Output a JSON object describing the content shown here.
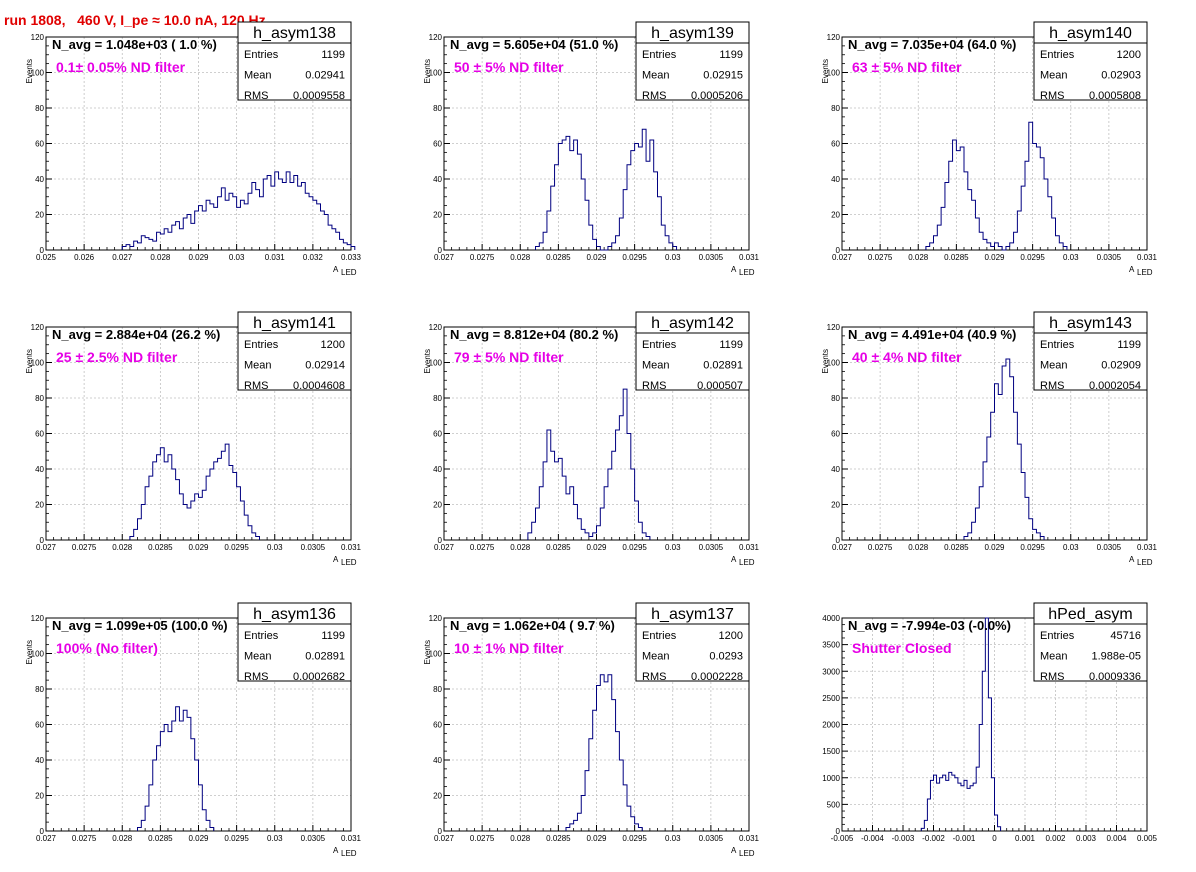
{
  "run_title": "run 1808,   460 V, I_pe ≈ 10.0 nA, 120 Hz",
  "colors": {
    "title": "#e00000",
    "filter_label": "#e600e6",
    "histogram_line": "#000080",
    "grid": "#c0c0c0"
  },
  "chart_data": [
    {
      "type": "histogram",
      "name": "h_asym138",
      "navg": "N_avg = 1.048e+03 ( 1.0 %)",
      "filter": "0.1± 0.05% ND filter",
      "stats": {
        "entries": "1199",
        "mean": "0.02941",
        "rms": "0.0009558"
      },
      "xlabel_main": "A",
      "xlabel_sub": "LED",
      "ylabel": "Events",
      "xlim": [
        0.025,
        0.033
      ],
      "ylim": [
        0,
        120
      ],
      "xticks": [
        {
          "v": 0.025,
          "t": "0.025"
        },
        {
          "v": 0.026,
          "t": "0.026"
        },
        {
          "v": 0.027,
          "t": "0.027"
        },
        {
          "v": 0.028,
          "t": "0.028"
        },
        {
          "v": 0.029,
          "t": "0.029"
        },
        {
          "v": 0.03,
          "t": "0.03"
        },
        {
          "v": 0.031,
          "t": "0.031"
        },
        {
          "v": 0.032,
          "t": "0.032"
        },
        {
          "v": 0.033,
          "t": "0.033"
        }
      ],
      "yticks": [
        {
          "v": 0,
          "t": "0"
        },
        {
          "v": 20,
          "t": "20"
        },
        {
          "v": 40,
          "t": "40"
        },
        {
          "v": 60,
          "t": "60"
        },
        {
          "v": 80,
          "t": "80"
        },
        {
          "v": 100,
          "t": "100"
        },
        {
          "v": 120,
          "t": "120"
        }
      ],
      "bin_start": 0.027,
      "bin_width": 0.0001,
      "counts": [
        2,
        3,
        2,
        5,
        4,
        8,
        7,
        6,
        5,
        10,
        9,
        12,
        10,
        14,
        16,
        12,
        18,
        20,
        15,
        22,
        25,
        22,
        28,
        26,
        24,
        30,
        35,
        28,
        32,
        30,
        24,
        28,
        26,
        32,
        38,
        34,
        30,
        40,
        42,
        36,
        44,
        40,
        38,
        44,
        38,
        42,
        36,
        38,
        32,
        30,
        28,
        26,
        22,
        20,
        14,
        12,
        10,
        6,
        4,
        3,
        2
      ]
    },
    {
      "type": "histogram",
      "name": "h_asym139",
      "navg": "N_avg = 5.605e+04 (51.0 %)",
      "filter": "50 ± 5% ND filter",
      "stats": {
        "entries": "1199",
        "mean": "0.02915",
        "rms": "0.0005206"
      },
      "xlabel_main": "A",
      "xlabel_sub": "LED",
      "ylabel": "Events",
      "xlim": [
        0.027,
        0.031
      ],
      "ylim": [
        0,
        120
      ],
      "xticks": [
        {
          "v": 0.027,
          "t": "0.027"
        },
        {
          "v": 0.0275,
          "t": "0.0275"
        },
        {
          "v": 0.028,
          "t": "0.028"
        },
        {
          "v": 0.0285,
          "t": "0.0285"
        },
        {
          "v": 0.029,
          "t": "0.029"
        },
        {
          "v": 0.0295,
          "t": "0.0295"
        },
        {
          "v": 0.03,
          "t": "0.03"
        },
        {
          "v": 0.0305,
          "t": "0.0305"
        },
        {
          "v": 0.031,
          "t": "0.031"
        }
      ],
      "yticks": [
        {
          "v": 0,
          "t": "0"
        },
        {
          "v": 20,
          "t": "20"
        },
        {
          "v": 40,
          "t": "40"
        },
        {
          "v": 60,
          "t": "60"
        },
        {
          "v": 80,
          "t": "80"
        },
        {
          "v": 100,
          "t": "100"
        },
        {
          "v": 120,
          "t": "120"
        }
      ],
      "bin_start": 0.0282,
      "bin_width": 5e-05,
      "counts": [
        2,
        4,
        10,
        22,
        36,
        48,
        60,
        62,
        64,
        56,
        62,
        54,
        40,
        28,
        14,
        6,
        2,
        0,
        0,
        2,
        4,
        8,
        18,
        34,
        48,
        56,
        60,
        58,
        68,
        50,
        62,
        44,
        30,
        14,
        8,
        4,
        2
      ]
    },
    {
      "type": "histogram",
      "name": "h_asym140",
      "navg": "N_avg = 7.035e+04 (64.0 %)",
      "filter": "63 ± 5% ND filter",
      "stats": {
        "entries": "1200",
        "mean": "0.02903",
        "rms": "0.0005808"
      },
      "xlabel_main": "A",
      "xlabel_sub": "LED",
      "ylabel": "Events",
      "xlim": [
        0.027,
        0.031
      ],
      "ylim": [
        0,
        120
      ],
      "xticks": [
        {
          "v": 0.027,
          "t": "0.027"
        },
        {
          "v": 0.0275,
          "t": "0.0275"
        },
        {
          "v": 0.028,
          "t": "0.028"
        },
        {
          "v": 0.0285,
          "t": "0.0285"
        },
        {
          "v": 0.029,
          "t": "0.029"
        },
        {
          "v": 0.0295,
          "t": "0.0295"
        },
        {
          "v": 0.03,
          "t": "0.03"
        },
        {
          "v": 0.0305,
          "t": "0.0305"
        },
        {
          "v": 0.031,
          "t": "0.031"
        }
      ],
      "yticks": [
        {
          "v": 0,
          "t": "0"
        },
        {
          "v": 20,
          "t": "20"
        },
        {
          "v": 40,
          "t": "40"
        },
        {
          "v": 60,
          "t": "60"
        },
        {
          "v": 80,
          "t": "80"
        },
        {
          "v": 100,
          "t": "100"
        },
        {
          "v": 120,
          "t": "120"
        }
      ],
      "bin_start": 0.0281,
      "bin_width": 5e-05,
      "counts": [
        2,
        4,
        8,
        14,
        24,
        38,
        50,
        62,
        56,
        58,
        44,
        34,
        28,
        18,
        10,
        6,
        4,
        2,
        4,
        2,
        0,
        2,
        4,
        10,
        22,
        36,
        50,
        72,
        60,
        58,
        52,
        40,
        30,
        18,
        8,
        4,
        2
      ]
    },
    {
      "type": "histogram",
      "name": "h_asym141",
      "navg": "N_avg = 2.884e+04 (26.2 %)",
      "filter": "25 ± 2.5% ND filter",
      "stats": {
        "entries": "1200",
        "mean": "0.02914",
        "rms": "0.0004608"
      },
      "xlabel_main": "A",
      "xlabel_sub": "LED",
      "ylabel": "Events",
      "xlim": [
        0.027,
        0.031
      ],
      "ylim": [
        0,
        120
      ],
      "xticks": [
        {
          "v": 0.027,
          "t": "0.027"
        },
        {
          "v": 0.0275,
          "t": "0.0275"
        },
        {
          "v": 0.028,
          "t": "0.028"
        },
        {
          "v": 0.0285,
          "t": "0.0285"
        },
        {
          "v": 0.029,
          "t": "0.029"
        },
        {
          "v": 0.0295,
          "t": "0.0295"
        },
        {
          "v": 0.03,
          "t": "0.03"
        },
        {
          "v": 0.0305,
          "t": "0.0305"
        },
        {
          "v": 0.031,
          "t": "0.031"
        }
      ],
      "yticks": [
        {
          "v": 0,
          "t": "0"
        },
        {
          "v": 20,
          "t": "20"
        },
        {
          "v": 40,
          "t": "40"
        },
        {
          "v": 60,
          "t": "60"
        },
        {
          "v": 80,
          "t": "80"
        },
        {
          "v": 100,
          "t": "100"
        },
        {
          "v": 120,
          "t": "120"
        }
      ],
      "bin_start": 0.0281,
      "bin_width": 5e-05,
      "counts": [
        2,
        6,
        12,
        20,
        30,
        36,
        44,
        48,
        52,
        44,
        48,
        40,
        34,
        26,
        20,
        18,
        22,
        26,
        24,
        28,
        36,
        40,
        44,
        46,
        50,
        54,
        42,
        38,
        30,
        22,
        14,
        8,
        4,
        2
      ]
    },
    {
      "type": "histogram",
      "name": "h_asym142",
      "navg": "N_avg = 8.812e+04 (80.2 %)",
      "filter": "79 ± 5% ND filter",
      "stats": {
        "entries": "1199",
        "mean": "0.02891",
        "rms": "0.000507"
      },
      "xlabel_main": "A",
      "xlabel_sub": "LED",
      "ylabel": "Events",
      "xlim": [
        0.027,
        0.031
      ],
      "ylim": [
        0,
        120
      ],
      "xticks": [
        {
          "v": 0.027,
          "t": "0.027"
        },
        {
          "v": 0.0275,
          "t": "0.0275"
        },
        {
          "v": 0.028,
          "t": "0.028"
        },
        {
          "v": 0.0285,
          "t": "0.0285"
        },
        {
          "v": 0.029,
          "t": "0.029"
        },
        {
          "v": 0.0295,
          "t": "0.0295"
        },
        {
          "v": 0.03,
          "t": "0.03"
        },
        {
          "v": 0.0305,
          "t": "0.0305"
        },
        {
          "v": 0.031,
          "t": "0.031"
        }
      ],
      "yticks": [
        {
          "v": 0,
          "t": "0"
        },
        {
          "v": 20,
          "t": "20"
        },
        {
          "v": 40,
          "t": "40"
        },
        {
          "v": 60,
          "t": "60"
        },
        {
          "v": 80,
          "t": "80"
        },
        {
          "v": 100,
          "t": "100"
        },
        {
          "v": 120,
          "t": "120"
        }
      ],
      "bin_start": 0.0281,
      "bin_width": 5e-05,
      "counts": [
        4,
        10,
        18,
        30,
        44,
        62,
        50,
        44,
        46,
        36,
        26,
        30,
        20,
        12,
        6,
        4,
        2,
        4,
        8,
        18,
        30,
        40,
        50,
        62,
        70,
        85,
        60,
        40,
        22,
        10,
        4,
        2
      ]
    },
    {
      "type": "histogram",
      "name": "h_asym143",
      "navg": "N_avg = 4.491e+04 (40.9 %)",
      "filter": "40 ± 4% ND filter",
      "stats": {
        "entries": "1199",
        "mean": "0.02909",
        "rms": "0.0002054"
      },
      "xlabel_main": "A",
      "xlabel_sub": "LED",
      "ylabel": "Events",
      "xlim": [
        0.027,
        0.031
      ],
      "ylim": [
        0,
        120
      ],
      "xticks": [
        {
          "v": 0.027,
          "t": "0.027"
        },
        {
          "v": 0.0275,
          "t": "0.0275"
        },
        {
          "v": 0.028,
          "t": "0.028"
        },
        {
          "v": 0.0285,
          "t": "0.0285"
        },
        {
          "v": 0.029,
          "t": "0.029"
        },
        {
          "v": 0.0295,
          "t": "0.0295"
        },
        {
          "v": 0.03,
          "t": "0.03"
        },
        {
          "v": 0.0305,
          "t": "0.0305"
        },
        {
          "v": 0.031,
          "t": "0.031"
        }
      ],
      "yticks": [
        {
          "v": 0,
          "t": "0"
        },
        {
          "v": 20,
          "t": "20"
        },
        {
          "v": 40,
          "t": "40"
        },
        {
          "v": 60,
          "t": "60"
        },
        {
          "v": 80,
          "t": "80"
        },
        {
          "v": 100,
          "t": "100"
        },
        {
          "v": 120,
          "t": "120"
        }
      ],
      "bin_start": 0.0286,
      "bin_width": 5e-05,
      "counts": [
        2,
        4,
        10,
        18,
        30,
        44,
        58,
        72,
        88,
        82,
        98,
        102,
        92,
        72,
        54,
        38,
        24,
        12,
        6,
        4,
        2
      ]
    },
    {
      "type": "histogram",
      "name": "h_asym136",
      "navg": "N_avg = 1.099e+05 (100.0 %)",
      "filter": "100% (No filter)",
      "stats": {
        "entries": "1199",
        "mean": "0.02891",
        "rms": "0.0002682"
      },
      "xlabel_main": "A",
      "xlabel_sub": "LED",
      "ylabel": "Events",
      "xlim": [
        0.027,
        0.031
      ],
      "ylim": [
        0,
        120
      ],
      "xticks": [
        {
          "v": 0.027,
          "t": "0.027"
        },
        {
          "v": 0.0275,
          "t": "0.0275"
        },
        {
          "v": 0.028,
          "t": "0.028"
        },
        {
          "v": 0.0285,
          "t": "0.0285"
        },
        {
          "v": 0.029,
          "t": "0.029"
        },
        {
          "v": 0.0295,
          "t": "0.0295"
        },
        {
          "v": 0.03,
          "t": "0.03"
        },
        {
          "v": 0.0305,
          "t": "0.0305"
        },
        {
          "v": 0.031,
          "t": "0.031"
        }
      ],
      "yticks": [
        {
          "v": 0,
          "t": "0"
        },
        {
          "v": 20,
          "t": "20"
        },
        {
          "v": 40,
          "t": "40"
        },
        {
          "v": 60,
          "t": "60"
        },
        {
          "v": 80,
          "t": "80"
        },
        {
          "v": 100,
          "t": "100"
        },
        {
          "v": 120,
          "t": "120"
        }
      ],
      "bin_start": 0.0282,
      "bin_width": 5e-05,
      "counts": [
        2,
        6,
        14,
        26,
        40,
        48,
        56,
        60,
        56,
        62,
        70,
        62,
        68,
        64,
        52,
        40,
        26,
        12,
        6,
        2
      ]
    },
    {
      "type": "histogram",
      "name": "h_asym137",
      "navg": "N_avg = 1.062e+04 ( 9.7 %)",
      "filter": "10 ± 1% ND filter",
      "stats": {
        "entries": "1200",
        "mean": "0.0293",
        "rms": "0.0002228"
      },
      "xlabel_main": "A",
      "xlabel_sub": "LED",
      "ylabel": "Events",
      "xlim": [
        0.027,
        0.031
      ],
      "ylim": [
        0,
        120
      ],
      "xticks": [
        {
          "v": 0.027,
          "t": "0.027"
        },
        {
          "v": 0.0275,
          "t": "0.0275"
        },
        {
          "v": 0.028,
          "t": "0.028"
        },
        {
          "v": 0.0285,
          "t": "0.0285"
        },
        {
          "v": 0.029,
          "t": "0.029"
        },
        {
          "v": 0.0295,
          "t": "0.0295"
        },
        {
          "v": 0.03,
          "t": "0.03"
        },
        {
          "v": 0.0305,
          "t": "0.0305"
        },
        {
          "v": 0.031,
          "t": "0.031"
        }
      ],
      "yticks": [
        {
          "v": 0,
          "t": "0"
        },
        {
          "v": 20,
          "t": "20"
        },
        {
          "v": 40,
          "t": "40"
        },
        {
          "v": 60,
          "t": "60"
        },
        {
          "v": 80,
          "t": "80"
        },
        {
          "v": 100,
          "t": "100"
        },
        {
          "v": 120,
          "t": "120"
        }
      ],
      "bin_start": 0.0286,
      "bin_width": 5e-05,
      "counts": [
        2,
        4,
        6,
        10,
        20,
        34,
        52,
        68,
        82,
        88,
        84,
        88,
        74,
        56,
        40,
        26,
        14,
        8,
        4,
        2
      ]
    },
    {
      "type": "histogram",
      "name": "hPed_asym",
      "navg": "N_avg = -7.994e-03 (-0.0%)",
      "filter": "Shutter Closed",
      "stats": {
        "entries": "45716",
        "mean": "1.988e-05",
        "rms": "0.0009336"
      },
      "xlabel_main": "",
      "xlabel_sub": "",
      "ylabel": "",
      "xlim": [
        -0.005,
        0.005
      ],
      "ylim": [
        0,
        4000
      ],
      "xticks": [
        {
          "v": -0.005,
          "t": "-0.005"
        },
        {
          "v": -0.004,
          "t": "-0.004"
        },
        {
          "v": -0.003,
          "t": "-0.003"
        },
        {
          "v": -0.002,
          "t": "-0.002"
        },
        {
          "v": -0.001,
          "t": "-0.001"
        },
        {
          "v": 0,
          "t": "0"
        },
        {
          "v": 0.001,
          "t": "0.001"
        },
        {
          "v": 0.002,
          "t": "0.002"
        },
        {
          "v": 0.003,
          "t": "0.003"
        },
        {
          "v": 0.004,
          "t": "0.004"
        },
        {
          "v": 0.005,
          "t": "0.005"
        }
      ],
      "yticks": [
        {
          "v": 0,
          "t": "0"
        },
        {
          "v": 500,
          "t": "500"
        },
        {
          "v": 1000,
          "t": "1000"
        },
        {
          "v": 1500,
          "t": "1500"
        },
        {
          "v": 2000,
          "t": "2000"
        },
        {
          "v": 2500,
          "t": "2500"
        },
        {
          "v": 3000,
          "t": "3000"
        },
        {
          "v": 3500,
          "t": "3500"
        },
        {
          "v": 4000,
          "t": "4000"
        }
      ],
      "bin_start": -0.0024,
      "bin_width": 0.0001,
      "counts": [
        50,
        200,
        600,
        950,
        1050,
        900,
        1000,
        1050,
        950,
        1100,
        1050,
        1000,
        900,
        850,
        950,
        800,
        850,
        900,
        1200,
        2000,
        3000,
        4000,
        2500,
        1000,
        300,
        80
      ]
    }
  ]
}
